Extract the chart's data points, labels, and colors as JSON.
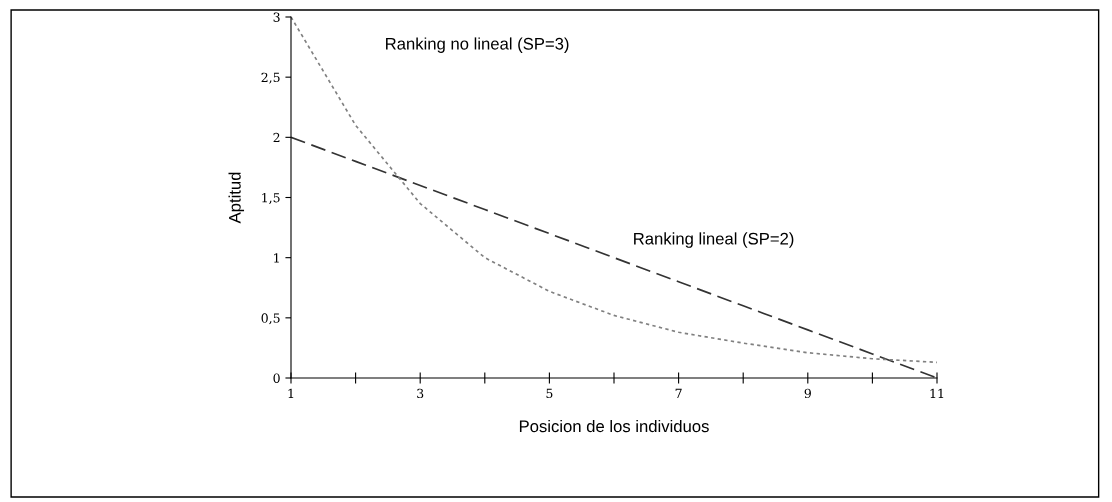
{
  "chart_data": {
    "type": "line",
    "xlabel": "Posicion de los individuos",
    "ylabel": "Aptitud",
    "x": [
      1,
      2,
      3,
      4,
      5,
      6,
      7,
      8,
      9,
      10,
      11
    ],
    "series": [
      {
        "color": "#333333",
        "line_style": "dashed",
        "values": [
          2.0,
          1.8,
          1.6,
          1.4,
          1.2,
          1.0,
          0.8,
          0.6,
          0.4,
          0.2,
          0.0
        ]
      },
      {
        "color": "#808080",
        "line_style": "dotted",
        "values": [
          3.0,
          2.1,
          1.45,
          1.0,
          0.72,
          0.52,
          0.38,
          0.29,
          0.21,
          0.16,
          0.13
        ]
      }
    ],
    "annotations": [
      "Ranking no lineal (SP=3)",
      "Ranking lineal (SP=2)"
    ],
    "xlim": [
      1,
      11
    ],
    "ylim": [
      0,
      3
    ],
    "xticks": [
      1,
      {
        "value": 2,
        "label": null
      },
      3,
      {
        "value": 4,
        "label": null
      },
      5,
      {
        "value": 6,
        "label": null
      },
      7,
      {
        "value": 8,
        "label": null
      },
      9,
      {
        "value": 10,
        "label": null
      },
      11
    ],
    "yticks": [
      0,
      {
        "value": 0.5,
        "label": "0,5"
      },
      1,
      {
        "value": 1.5,
        "label": "1,5"
      },
      2,
      {
        "value": 2.5,
        "label": "2,5"
      },
      3
    ],
    "grid": false,
    "legend": false,
    "marker": "none"
  }
}
